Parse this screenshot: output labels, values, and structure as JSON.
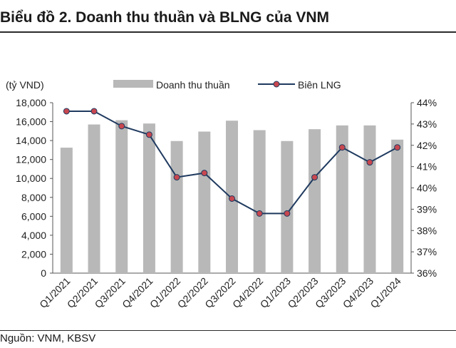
{
  "title": "Biểu đồ 2. Doanh thu thuần và BLNG của VNM",
  "source": "Nguồn: VNM, KBSV",
  "colors": {
    "bar": "#b8b8b8",
    "line": "#1f3a5f",
    "marker_fill": "#c8474f",
    "marker_stroke": "#1f3a5f",
    "axis": "#555555",
    "text": "#222222"
  },
  "chart_data": {
    "type": "bar",
    "unit_label": "(tỷ VND)",
    "categories": [
      "Q1/2021",
      "Q2/2021",
      "Q3/2021",
      "Q4/2021",
      "Q1/2022",
      "Q2/2022",
      "Q3/2022",
      "Q4/2022",
      "Q1/2023",
      "Q2/2023",
      "Q3/2023",
      "Q4/2023",
      "Q1/2024"
    ],
    "series": [
      {
        "name": "Doanh thu thuần",
        "type": "bar",
        "axis": "left",
        "values": [
          13250,
          15700,
          16150,
          15800,
          13950,
          14950,
          16100,
          15100,
          13950,
          15200,
          15600,
          15600,
          14100
        ]
      },
      {
        "name": "Biên LNG",
        "type": "line",
        "axis": "right",
        "values": [
          43.6,
          43.6,
          42.9,
          42.5,
          40.5,
          40.7,
          39.5,
          38.8,
          38.8,
          40.5,
          41.9,
          41.2,
          41.9
        ]
      }
    ],
    "ylim_left": [
      0,
      18000
    ],
    "yticks_left": [
      "0",
      "2,000",
      "4,000",
      "6,000",
      "8,000",
      "10,000",
      "12,000",
      "14,000",
      "16,000",
      "18,000"
    ],
    "ylim_right": [
      36,
      44
    ],
    "yticks_right": [
      "36%",
      "37%",
      "38%",
      "39%",
      "40%",
      "41%",
      "42%",
      "43%",
      "44%"
    ],
    "legend_position": "top",
    "grid": false
  }
}
